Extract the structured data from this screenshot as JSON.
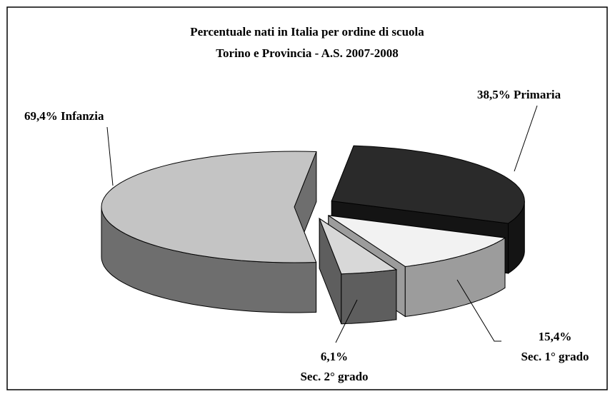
{
  "chart_data": {
    "type": "pie3d",
    "title": "Percentuale nati in Italia per ordine di scuola",
    "subtitle": "Torino e Provincia - A.S. 2007-2008",
    "categories": [
      "Infanzia",
      "Primaria",
      "Sec. 1° grado",
      "Sec. 2° grado"
    ],
    "values": [
      69.4,
      38.5,
      15.4,
      6.1
    ],
    "value_labels": [
      "69,4%",
      "38,5%",
      "15,4%",
      "6,1%"
    ],
    "colors": [
      "#c4c4c4",
      "#2a2a2a",
      "#f2f2f2",
      "#d8d8d8"
    ],
    "side_colors": [
      "#6e6e6e",
      "#141414",
      "#9c9c9c",
      "#5e5e5e"
    ]
  }
}
